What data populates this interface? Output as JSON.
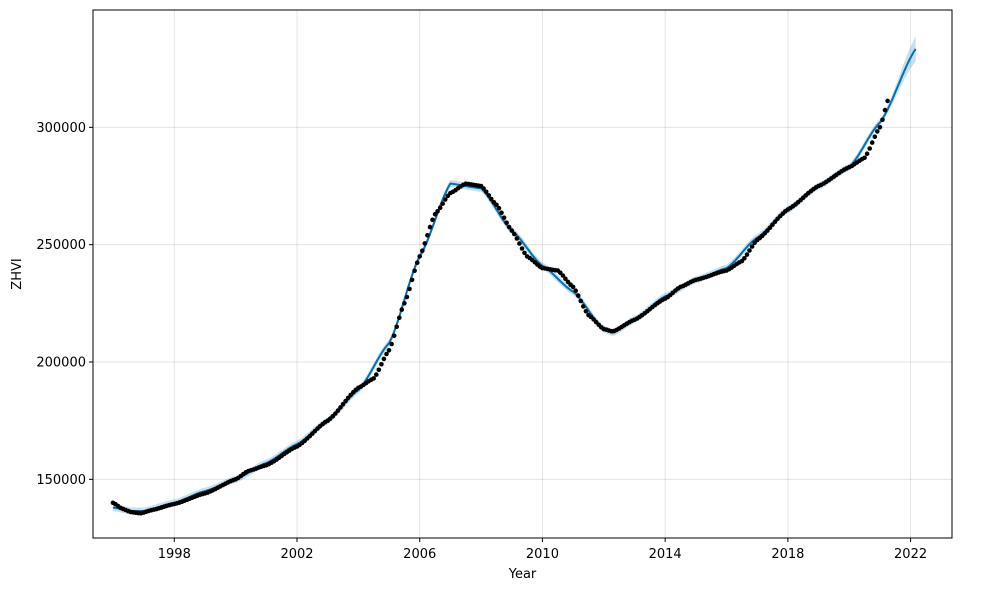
{
  "chart_data": {
    "type": "line",
    "title": "",
    "xlabel": "Year",
    "ylabel": "ZHVI",
    "xlim": [
      1995.35,
      2023.35
    ],
    "ylim": [
      125000,
      350000
    ],
    "x_ticks": [
      1998,
      2002,
      2006,
      2010,
      2014,
      2018,
      2022
    ],
    "x_tick_labels": [
      "1998",
      "2002",
      "2006",
      "2010",
      "2014",
      "2018",
      "2022"
    ],
    "y_ticks": [
      150000,
      200000,
      250000,
      300000
    ],
    "y_tick_labels": [
      "150000",
      "200000",
      "250000",
      "300000"
    ],
    "grid": true,
    "colors": {
      "observed": "#000000",
      "forecast": "#0072B2",
      "interval": "#0072B2"
    },
    "observed_anchors": [
      [
        1996.0,
        140000
      ],
      [
        1996.3,
        137500
      ],
      [
        1996.6,
        136000
      ],
      [
        1996.9,
        135500
      ],
      [
        1997.3,
        137000
      ],
      [
        1998.0,
        139500
      ],
      [
        1999.0,
        144000
      ],
      [
        2000.0,
        150000
      ],
      [
        2000.4,
        153500
      ],
      [
        2001.0,
        156000
      ],
      [
        2002.0,
        164000
      ],
      [
        2003.0,
        175000
      ],
      [
        2004.0,
        189000
      ],
      [
        2004.5,
        193000
      ],
      [
        2005.0,
        205000
      ],
      [
        2005.5,
        225000
      ],
      [
        2006.0,
        245000
      ],
      [
        2006.5,
        263000
      ],
      [
        2007.0,
        272000
      ],
      [
        2007.5,
        276000
      ],
      [
        2008.0,
        275000
      ],
      [
        2008.5,
        267000
      ],
      [
        2009.0,
        256000
      ],
      [
        2009.5,
        245000
      ],
      [
        2010.0,
        240000
      ],
      [
        2010.5,
        239000
      ],
      [
        2011.0,
        232000
      ],
      [
        2011.5,
        220000
      ],
      [
        2012.0,
        214000
      ],
      [
        2012.3,
        213000
      ],
      [
        2013.0,
        218000
      ],
      [
        2014.0,
        227000
      ],
      [
        2014.5,
        232000
      ],
      [
        2015.0,
        235000
      ],
      [
        2016.0,
        239000
      ],
      [
        2016.5,
        243000
      ],
      [
        2017.0,
        252000
      ],
      [
        2018.0,
        265000
      ],
      [
        2019.0,
        275000
      ],
      [
        2020.0,
        283000
      ],
      [
        2020.5,
        287000
      ],
      [
        2021.0,
        300000
      ],
      [
        2021.3,
        313000
      ]
    ],
    "forecast_anchors": [
      [
        1996.0,
        138000
      ],
      [
        1996.6,
        136500
      ],
      [
        1997.0,
        136500
      ],
      [
        1998.0,
        140000
      ],
      [
        1999.0,
        145000
      ],
      [
        2000.0,
        150000
      ],
      [
        2001.0,
        157000
      ],
      [
        2002.0,
        165000
      ],
      [
        2003.0,
        175000
      ],
      [
        2004.0,
        188000
      ],
      [
        2005.0,
        208000
      ],
      [
        2006.0,
        245000
      ],
      [
        2007.0,
        276000
      ],
      [
        2008.0,
        274000
      ],
      [
        2009.0,
        256000
      ],
      [
        2010.0,
        241000
      ],
      [
        2011.0,
        230000
      ],
      [
        2012.0,
        214000
      ],
      [
        2012.3,
        212500
      ],
      [
        2013.0,
        218000
      ],
      [
        2014.0,
        228000
      ],
      [
        2015.0,
        235000
      ],
      [
        2016.0,
        240000
      ],
      [
        2017.0,
        253000
      ],
      [
        2018.0,
        265000
      ],
      [
        2019.0,
        275000
      ],
      [
        2020.0,
        283000
      ],
      [
        2021.0,
        302000
      ],
      [
        2022.2,
        334000
      ]
    ]
  }
}
